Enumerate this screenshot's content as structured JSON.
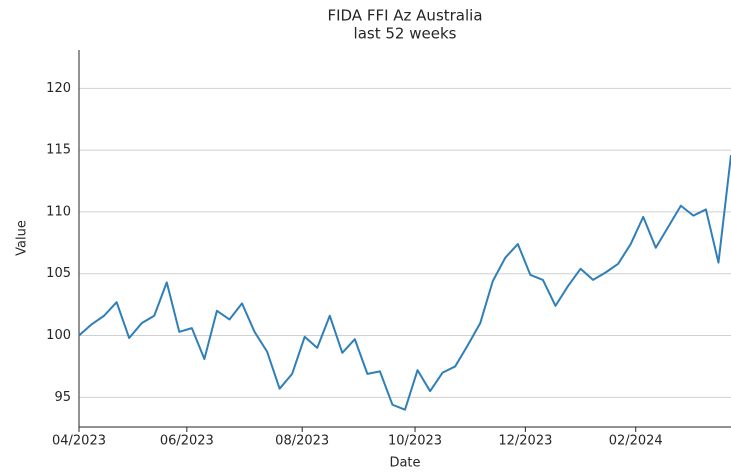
{
  "chart_data": {
    "type": "line",
    "title": "FIDA FFI Az Australia",
    "subtitle": "last 52 weeks",
    "x_label": "Date",
    "y_label": "Value",
    "x": [
      0,
      1,
      2,
      3,
      4,
      5,
      6,
      7,
      8,
      9,
      10,
      11,
      12,
      13,
      14,
      15,
      16,
      17,
      18,
      19,
      20,
      21,
      22,
      23,
      24,
      25,
      26,
      27,
      28,
      29,
      30,
      31,
      32,
      33,
      34,
      35,
      36,
      37,
      38,
      39,
      40,
      41,
      42,
      43,
      44,
      45,
      46,
      47,
      48,
      49,
      50,
      51,
      52
    ],
    "series": [
      {
        "name": "Value",
        "color": "#2f7fb8",
        "values": [
          100.0,
          100.9,
          101.6,
          102.7,
          99.8,
          101.0,
          101.6,
          104.3,
          100.3,
          100.6,
          98.1,
          102.0,
          101.3,
          102.6,
          100.3,
          98.7,
          95.7,
          96.9,
          99.9,
          99.0,
          101.6,
          98.6,
          99.7,
          96.9,
          97.1,
          94.4,
          94.0,
          97.2,
          95.5,
          97.0,
          97.5,
          99.2,
          101.0,
          104.4,
          106.3,
          107.4,
          104.9,
          104.5,
          102.4,
          104.0,
          105.4,
          104.5,
          105.1,
          105.8,
          107.4,
          109.6,
          107.1,
          108.8,
          110.5,
          109.7,
          110.2,
          105.9,
          114.6
        ]
      }
    ],
    "xlim": [
      0,
      52
    ],
    "xticks": [
      {
        "value": 0,
        "label": "04/2023"
      },
      {
        "value": 8.6,
        "label": "06/2023"
      },
      {
        "value": 17.8,
        "label": "08/2023"
      },
      {
        "value": 26.8,
        "label": "10/2023"
      },
      {
        "value": 35.6,
        "label": "12/2023"
      },
      {
        "value": 44.4,
        "label": "02/2024"
      }
    ],
    "ylim": [
      92.6,
      123.1
    ],
    "yticks": [
      95,
      100,
      105,
      110,
      115,
      120
    ],
    "grid": true
  }
}
